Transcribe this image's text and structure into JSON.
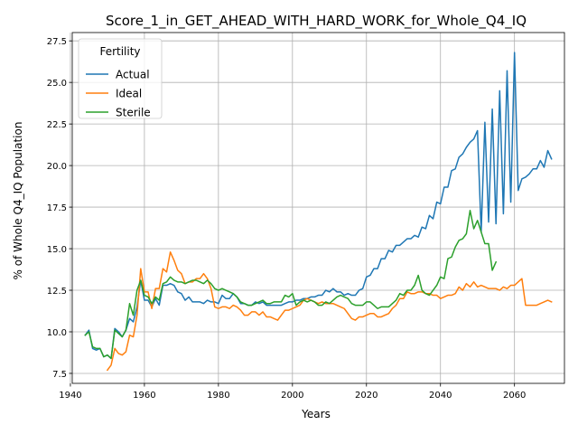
{
  "chart_data": {
    "type": "line",
    "title": "Score_1_in_GET_AHEAD_WITH_HARD_WORK_for_Whole_Q4_IQ",
    "xlabel": "Years",
    "ylabel": "% of Whole Q4_IQ Population",
    "xlim": [
      1940.5,
      2073.5
    ],
    "ylim": [
      6.9,
      28.0
    ],
    "xticks": [
      1940,
      1960,
      1980,
      2000,
      2020,
      2040,
      2060
    ],
    "yticks": [
      7.5,
      10.0,
      12.5,
      15.0,
      17.5,
      20.0,
      22.5,
      25.0,
      27.5
    ],
    "grid": true,
    "legend": {
      "title": "Fertility",
      "placement": "top-left"
    },
    "series": [
      {
        "name": "Actual",
        "color": "#1f77b4",
        "x": [
          1944,
          1945,
          1946,
          1947,
          1948,
          1949,
          1950,
          1951,
          1952,
          1953,
          1954,
          1955,
          1956,
          1957,
          1958,
          1959,
          1960,
          1961,
          1962,
          1963,
          1964,
          1965,
          1966,
          1967,
          1968,
          1969,
          1970,
          1971,
          1972,
          1973,
          1974,
          1975,
          1976,
          1977,
          1978,
          1979,
          1980,
          1981,
          1982,
          1983,
          1984,
          1985,
          1986,
          1987,
          1988,
          1989,
          1990,
          1991,
          1992,
          1993,
          1994,
          1995,
          1996,
          1997,
          1998,
          1999,
          2000,
          2001,
          2002,
          2003,
          2004,
          2005,
          2006,
          2007,
          2008,
          2009,
          2010,
          2011,
          2012,
          2013,
          2014,
          2015,
          2016,
          2017,
          2018,
          2019,
          2020,
          2021,
          2022,
          2023,
          2024,
          2025,
          2026,
          2027,
          2028,
          2029,
          2030,
          2031,
          2032,
          2033,
          2034,
          2035,
          2036,
          2037,
          2038,
          2039,
          2040,
          2041,
          2042,
          2043,
          2044,
          2045,
          2046,
          2047,
          2048,
          2049,
          2050,
          2051,
          2052,
          2053,
          2054,
          2055,
          2056,
          2057,
          2058,
          2059,
          2060,
          2061,
          2062,
          2063,
          2064,
          2065,
          2066,
          2067,
          2068,
          2069,
          2070
        ],
        "values": [
          9.8,
          10.1,
          9.0,
          8.9,
          9.0,
          8.5,
          8.6,
          8.4,
          10.2,
          10.0,
          9.7,
          10.1,
          10.8,
          10.6,
          11.5,
          13.1,
          11.9,
          11.9,
          11.5,
          12.0,
          11.6,
          12.8,
          12.8,
          12.9,
          12.8,
          12.4,
          12.3,
          11.9,
          12.1,
          11.8,
          11.8,
          11.8,
          11.7,
          11.9,
          11.8,
          11.8,
          11.7,
          12.2,
          12.0,
          12.0,
          12.3,
          12.1,
          11.7,
          11.7,
          11.6,
          11.6,
          11.8,
          11.7,
          11.8,
          11.6,
          11.6,
          11.6,
          11.6,
          11.6,
          11.7,
          11.8,
          11.8,
          11.9,
          11.9,
          12.0,
          12.0,
          12.1,
          12.1,
          12.2,
          12.2,
          12.5,
          12.4,
          12.6,
          12.4,
          12.4,
          12.2,
          12.3,
          12.2,
          12.2,
          12.5,
          12.6,
          13.3,
          13.4,
          13.8,
          13.8,
          14.4,
          14.4,
          14.9,
          14.8,
          15.2,
          15.2,
          15.4,
          15.6,
          15.6,
          15.8,
          15.7,
          16.3,
          16.2,
          17.0,
          16.8,
          17.8,
          17.7,
          18.7,
          18.7,
          19.7,
          19.8,
          20.5,
          20.7,
          21.1,
          21.4,
          21.6,
          22.1,
          16.0,
          22.6,
          16.6,
          23.4,
          16.5,
          24.5,
          17.1,
          25.7,
          17.8,
          26.8,
          18.5,
          19.2,
          19.3,
          19.5,
          19.8,
          19.8,
          20.3,
          19.9,
          20.9,
          20.4
        ]
      },
      {
        "name": "Ideal",
        "color": "#ff7f0e",
        "x": [
          1950,
          1951,
          1952,
          1953,
          1954,
          1955,
          1956,
          1957,
          1958,
          1959,
          1960,
          1961,
          1962,
          1963,
          1964,
          1965,
          1966,
          1967,
          1968,
          1969,
          1970,
          1971,
          1972,
          1973,
          1974,
          1975,
          1976,
          1977,
          1978,
          1979,
          1980,
          1981,
          1982,
          1983,
          1984,
          1985,
          1986,
          1987,
          1988,
          1989,
          1990,
          1991,
          1992,
          1993,
          1994,
          1995,
          1996,
          1997,
          1998,
          1999,
          2000,
          2001,
          2002,
          2003,
          2004,
          2005,
          2006,
          2007,
          2008,
          2009,
          2010,
          2011,
          2012,
          2013,
          2014,
          2015,
          2016,
          2017,
          2018,
          2019,
          2020,
          2021,
          2022,
          2023,
          2024,
          2025,
          2026,
          2027,
          2028,
          2029,
          2030,
          2031,
          2032,
          2033,
          2034,
          2035,
          2036,
          2037,
          2038,
          2039,
          2040,
          2041,
          2042,
          2043,
          2044,
          2045,
          2046,
          2047,
          2048,
          2049,
          2050,
          2051,
          2052,
          2053,
          2054,
          2055,
          2056,
          2057,
          2058,
          2059,
          2060,
          2061,
          2062,
          2063,
          2064,
          2065,
          2066,
          2067,
          2068,
          2069,
          2070
        ],
        "values": [
          7.7,
          8.0,
          9.0,
          8.7,
          8.6,
          8.8,
          9.8,
          9.7,
          11.0,
          13.8,
          12.4,
          12.4,
          11.4,
          12.6,
          12.6,
          13.8,
          13.6,
          14.8,
          14.3,
          13.7,
          13.5,
          12.9,
          13.0,
          13.0,
          13.2,
          13.2,
          13.5,
          13.2,
          12.6,
          11.5,
          11.4,
          11.5,
          11.5,
          11.4,
          11.6,
          11.5,
          11.3,
          11.0,
          11.0,
          11.2,
          11.2,
          11.0,
          11.2,
          10.9,
          10.9,
          10.8,
          10.7,
          11.0,
          11.3,
          11.3,
          11.4,
          11.5,
          11.6,
          11.9,
          12.0,
          11.9,
          11.8,
          11.7,
          11.8,
          11.7,
          11.7,
          11.7,
          11.6,
          11.5,
          11.4,
          11.1,
          10.8,
          10.7,
          10.9,
          10.9,
          11.0,
          11.1,
          11.1,
          10.9,
          10.9,
          11.0,
          11.1,
          11.4,
          11.6,
          12.0,
          12.0,
          12.4,
          12.3,
          12.3,
          12.4,
          12.4,
          12.3,
          12.3,
          12.2,
          12.2,
          12.0,
          12.1,
          12.2,
          12.2,
          12.3,
          12.7,
          12.5,
          12.9,
          12.7,
          13.0,
          12.7,
          12.8,
          12.7,
          12.6,
          12.6,
          12.6,
          12.5,
          12.7,
          12.6,
          12.8,
          12.8,
          13.0,
          13.2,
          11.6,
          11.6,
          11.6,
          11.6,
          11.7,
          11.8,
          11.9,
          11.8
        ]
      },
      {
        "name": "Sterile",
        "color": "#2ca02c",
        "x": [
          1944,
          1945,
          1946,
          1947,
          1948,
          1949,
          1950,
          1951,
          1952,
          1953,
          1954,
          1955,
          1956,
          1957,
          1958,
          1959,
          1960,
          1961,
          1962,
          1963,
          1964,
          1965,
          1966,
          1967,
          1968,
          1969,
          1970,
          1971,
          1972,
          1973,
          1974,
          1975,
          1976,
          1977,
          1978,
          1979,
          1980,
          1981,
          1982,
          1983,
          1984,
          1985,
          1986,
          1987,
          1988,
          1989,
          1990,
          1991,
          1992,
          1993,
          1994,
          1995,
          1996,
          1997,
          1998,
          1999,
          2000,
          2001,
          2002,
          2003,
          2004,
          2005,
          2006,
          2007,
          2008,
          2009,
          2010,
          2011,
          2012,
          2013,
          2014,
          2015,
          2016,
          2017,
          2018,
          2019,
          2020,
          2021,
          2022,
          2023,
          2024,
          2025,
          2026,
          2027,
          2028,
          2029,
          2030,
          2031,
          2032,
          2033,
          2034,
          2035,
          2036,
          2037,
          2038,
          2039,
          2040,
          2041,
          2042,
          2043,
          2044,
          2045,
          2046,
          2047,
          2048,
          2049,
          2050,
          2051,
          2052,
          2053,
          2054,
          2055
        ],
        "values": [
          9.8,
          10.0,
          9.1,
          9.0,
          9.0,
          8.5,
          8.6,
          8.4,
          10.1,
          9.9,
          9.7,
          10.1,
          11.7,
          11.0,
          12.5,
          13.1,
          12.2,
          12.1,
          11.7,
          12.1,
          11.9,
          12.9,
          13.0,
          13.3,
          13.1,
          13.0,
          13.0,
          12.9,
          13.0,
          13.1,
          13.1,
          13.0,
          12.9,
          13.1,
          12.9,
          12.6,
          12.5,
          12.6,
          12.5,
          12.4,
          12.3,
          12.1,
          11.8,
          11.7,
          11.6,
          11.6,
          11.7,
          11.8,
          11.9,
          11.7,
          11.7,
          11.8,
          11.8,
          11.8,
          12.2,
          12.1,
          12.3,
          11.6,
          11.8,
          11.9,
          11.8,
          11.9,
          11.8,
          11.6,
          11.6,
          11.8,
          11.7,
          11.9,
          12.1,
          12.2,
          12.1,
          12.0,
          11.7,
          11.6,
          11.6,
          11.6,
          11.8,
          11.8,
          11.6,
          11.4,
          11.5,
          11.5,
          11.5,
          11.7,
          11.9,
          12.3,
          12.2,
          12.5,
          12.5,
          12.8,
          13.4,
          12.5,
          12.3,
          12.2,
          12.5,
          12.8,
          13.3,
          13.2,
          14.4,
          14.5,
          15.1,
          15.5,
          15.6,
          15.9,
          17.3,
          16.2,
          16.7,
          16.0,
          15.3,
          15.3,
          13.7,
          14.2
        ]
      }
    ]
  }
}
